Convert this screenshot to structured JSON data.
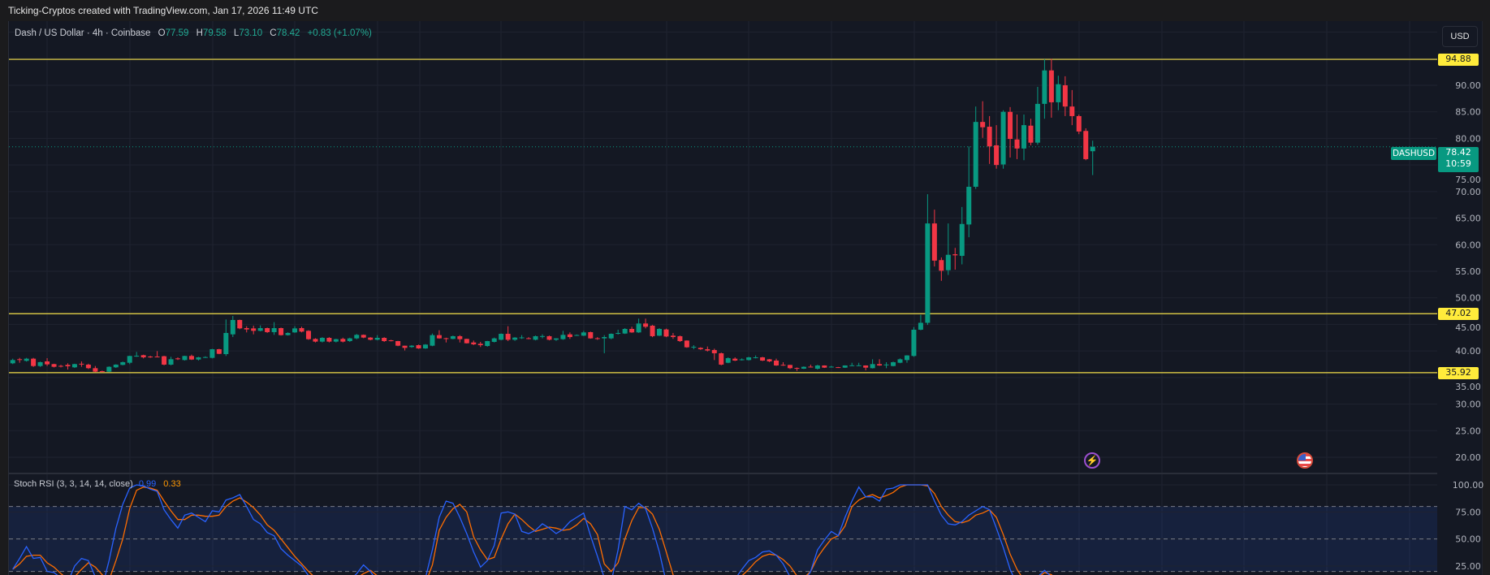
{
  "credit": "Ticking-Cryptos created with TradingView.com, Jan 17, 2026 11:49 UTC",
  "legend": {
    "symbol": "Dash / US Dollar · 4h · Coinbase",
    "o_label": "O",
    "o": "77.59",
    "h_label": "H",
    "h": "79.58",
    "l_label": "L",
    "l": "73.10",
    "c_label": "C",
    "c": "78.42",
    "change": "+0.83 (+1.07%)"
  },
  "currency_button": "USD",
  "price_axis": {
    "ticks": [
      "90.00",
      "85.00",
      "80.00",
      "75.00",
      "70.00",
      "65.00",
      "60.00",
      "55.00",
      "50.00",
      "45.00",
      "40.00",
      "35.00",
      "30.00",
      "25.00",
      "20.00"
    ]
  },
  "horizontal_lines": [
    {
      "price": 94.88,
      "label": "94.88"
    },
    {
      "price": 47.02,
      "label": "47.02"
    },
    {
      "price": 35.92,
      "label": "35.92"
    }
  ],
  "last_price": {
    "symbol": "DASHUSD",
    "price": "78.42",
    "countdown": "10:59"
  },
  "event_icons": [
    "lightning-event-icon",
    "us-flag-event-icon"
  ],
  "stoch_rsi": {
    "label": "Stoch RSI (3, 3, 14, 14, close)",
    "k_value": "0.99",
    "d_value": "0.33",
    "axis_ticks": [
      "100.00",
      "75.00",
      "50.00",
      "25.00"
    ],
    "bands": [
      80,
      50,
      20
    ]
  },
  "colors": {
    "up": "#089981",
    "down": "#f23645",
    "hline": "#f5e04a",
    "stoch_k": "#2962ff",
    "stoch_d": "#ff6d00",
    "background": "#141823"
  },
  "chart_data": {
    "type": "candlestick",
    "symbol": "DASHUSD",
    "interval": "4h",
    "ylim": [
      16.9,
      102.4
    ],
    "grid": true,
    "ohlc": [
      [
        37.68,
        38.55,
        37.53,
        38.29
      ],
      [
        38.45,
        38.7,
        37.78,
        38.35
      ],
      [
        38.14,
        38.7,
        38.0,
        38.55
      ],
      [
        38.55,
        38.7,
        37.0,
        37.17
      ],
      [
        37.17,
        38.0,
        37.0,
        37.89
      ],
      [
        38.04,
        38.65,
        37.17,
        37.48
      ],
      [
        37.53,
        37.6,
        36.9,
        37.02
      ],
      [
        37.2,
        37.4,
        36.9,
        37.15
      ],
      [
        37.38,
        37.68,
        36.51,
        37.12
      ],
      [
        36.92,
        37.6,
        36.8,
        37.53
      ],
      [
        37.6,
        38.04,
        37.02,
        37.5
      ],
      [
        37.43,
        37.6,
        36.6,
        36.76
      ],
      [
        36.76,
        37.17,
        36.0,
        36.1
      ],
      [
        36.2,
        36.3,
        35.95,
        36.1
      ],
      [
        36.1,
        37.1,
        36.0,
        37.02
      ],
      [
        36.92,
        37.5,
        36.8,
        37.43
      ],
      [
        37.38,
        38.0,
        37.3,
        37.89
      ],
      [
        37.78,
        39.1,
        37.53,
        39.06
      ],
      [
        39.0,
        39.82,
        38.9,
        39.1
      ],
      [
        39.21,
        39.3,
        38.6,
        38.8
      ],
      [
        38.95,
        39.1,
        38.7,
        38.85
      ],
      [
        38.95,
        39.97,
        38.8,
        38.85
      ],
      [
        39.01,
        39.1,
        37.3,
        37.43
      ],
      [
        37.43,
        38.9,
        37.3,
        38.45
      ],
      [
        38.6,
        38.8,
        38.3,
        38.5
      ],
      [
        38.29,
        39.1,
        38.2,
        39.06
      ],
      [
        39.06,
        39.31,
        38.3,
        38.39
      ],
      [
        38.39,
        38.9,
        38.2,
        38.8
      ],
      [
        38.8,
        39.0,
        38.7,
        38.85
      ],
      [
        38.7,
        40.4,
        38.6,
        40.33
      ],
      [
        40.33,
        40.4,
        39.4,
        39.46
      ],
      [
        39.41,
        45.93,
        39.06,
        43.39
      ],
      [
        43.13,
        46.6,
        42.62,
        45.83
      ],
      [
        45.83,
        45.9,
        44.1,
        44.25
      ],
      [
        44.3,
        44.66,
        43.49,
        44.05
      ],
      [
        44.25,
        44.76,
        43.13,
        43.79
      ],
      [
        43.79,
        44.81,
        43.7,
        44.3
      ],
      [
        44.3,
        44.4,
        43.4,
        43.54
      ],
      [
        43.54,
        45.42,
        43.03,
        44.3
      ],
      [
        44.3,
        44.4,
        42.9,
        42.98
      ],
      [
        42.98,
        43.5,
        42.9,
        43.39
      ],
      [
        43.49,
        44.66,
        43.4,
        44.25
      ],
      [
        44.3,
        44.56,
        43.5,
        43.64
      ],
      [
        43.79,
        43.9,
        42.1,
        42.22
      ],
      [
        42.27,
        42.4,
        41.6,
        41.76
      ],
      [
        41.76,
        42.6,
        41.6,
        42.47
      ],
      [
        42.47,
        42.6,
        41.6,
        41.76
      ],
      [
        41.76,
        42.3,
        41.6,
        42.22
      ],
      [
        42.27,
        42.5,
        41.6,
        41.76
      ],
      [
        41.86,
        42.5,
        41.7,
        42.37
      ],
      [
        42.37,
        43.2,
        42.2,
        43.03
      ],
      [
        43.03,
        43.1,
        42.4,
        42.52
      ],
      [
        42.52,
        42.6,
        42.0,
        42.11
      ],
      [
        42.11,
        42.98,
        42.0,
        42.47
      ],
      [
        42.47,
        42.6,
        41.7,
        41.86
      ],
      [
        42.0,
        42.1,
        41.8,
        41.9
      ],
      [
        41.86,
        41.9,
        40.9,
        40.99
      ],
      [
        40.99,
        41.0,
        40.1,
        40.58
      ],
      [
        40.74,
        41.1,
        40.6,
        40.99
      ],
      [
        41.09,
        41.2,
        40.4,
        40.48
      ],
      [
        40.48,
        41.3,
        40.4,
        41.2
      ],
      [
        40.99,
        43.28,
        40.9,
        42.98
      ],
      [
        42.98,
        43.9,
        42.3,
        42.37
      ],
      [
        42.4,
        42.5,
        41.6,
        42.35
      ],
      [
        42.27,
        42.9,
        42.2,
        42.78
      ],
      [
        42.78,
        42.98,
        41.6,
        42.22
      ],
      [
        42.27,
        42.3,
        41.4,
        41.45
      ],
      [
        41.6,
        41.96,
        41.1,
        41.25
      ],
      [
        41.35,
        41.71,
        40.74,
        41.09
      ],
      [
        40.94,
        41.9,
        40.8,
        41.86
      ],
      [
        41.71,
        42.52,
        41.6,
        42.37
      ],
      [
        42.11,
        43.3,
        42.0,
        43.23
      ],
      [
        43.23,
        44.66,
        41.86,
        42.11
      ],
      [
        42.11,
        42.6,
        41.9,
        42.52
      ],
      [
        42.5,
        42.98,
        42.27,
        42.55
      ],
      [
        42.4,
        42.6,
        42.2,
        42.35
      ],
      [
        42.11,
        42.9,
        42.0,
        42.78
      ],
      [
        42.75,
        43.13,
        42.37,
        42.8
      ],
      [
        42.78,
        42.9,
        42.0,
        42.11
      ],
      [
        42.11,
        42.4,
        41.9,
        42.37
      ],
      [
        42.22,
        43.79,
        42.1,
        43.03
      ],
      [
        43.13,
        43.49,
        42.27,
        42.62
      ],
      [
        42.95,
        43.1,
        42.85,
        43.0
      ],
      [
        42.88,
        43.79,
        42.8,
        43.49
      ],
      [
        43.54,
        43.64,
        42.3,
        42.37
      ],
      [
        42.4,
        42.6,
        42.1,
        42.35
      ],
      [
        42.37,
        42.98,
        39.57,
        42.62
      ],
      [
        42.37,
        43.3,
        42.2,
        43.23
      ],
      [
        43.23,
        44.0,
        43.1,
        43.39
      ],
      [
        43.28,
        44.3,
        43.2,
        44.15
      ],
      [
        44.15,
        44.56,
        43.4,
        43.49
      ],
      [
        43.49,
        46.09,
        43.4,
        45.17
      ],
      [
        45.17,
        46.09,
        44.25,
        44.56
      ],
      [
        44.76,
        44.9,
        42.6,
        42.78
      ],
      [
        42.88,
        44.3,
        42.8,
        44.15
      ],
      [
        44.05,
        44.2,
        42.6,
        42.72
      ],
      [
        42.88,
        43.39,
        42.27,
        42.62
      ],
      [
        42.78,
        42.9,
        41.7,
        41.86
      ],
      [
        41.96,
        42.0,
        40.6,
        40.69
      ],
      [
        40.7,
        41.09,
        40.33,
        40.8
      ],
      [
        40.58,
        40.7,
        40.2,
        40.33
      ],
      [
        40.33,
        40.84,
        39.9,
        40.08
      ],
      [
        40.18,
        40.43,
        38.29,
        39.57
      ],
      [
        39.57,
        39.7,
        37.3,
        37.43
      ],
      [
        37.78,
        38.8,
        37.7,
        38.65
      ],
      [
        38.55,
        38.8,
        38.1,
        38.19
      ],
      [
        38.37,
        38.6,
        38.2,
        38.42
      ],
      [
        38.29,
        38.9,
        38.2,
        38.8
      ],
      [
        38.75,
        39.16,
        38.6,
        38.8
      ],
      [
        38.8,
        38.9,
        38.1,
        38.19
      ],
      [
        38.44,
        38.5,
        37.9,
        38.04
      ],
      [
        38.19,
        38.55,
        37.2,
        37.27
      ],
      [
        37.4,
        37.88,
        37.2,
        37.35
      ],
      [
        37.37,
        37.4,
        36.6,
        36.76
      ],
      [
        36.8,
        36.9,
        36.25,
        36.75
      ],
      [
        36.66,
        37.1,
        36.6,
        37.02
      ],
      [
        37.05,
        37.42,
        36.9,
        37.0
      ],
      [
        36.66,
        37.4,
        36.5,
        37.27
      ],
      [
        37.27,
        37.3,
        36.8,
        36.86
      ],
      [
        37.0,
        37.2,
        36.9,
        37.05
      ],
      [
        36.95,
        37.0,
        36.8,
        36.9
      ],
      [
        36.86,
        37.3,
        36.8,
        37.27
      ],
      [
        37.25,
        37.78,
        37.2,
        37.3
      ],
      [
        37.25,
        37.78,
        37.2,
        37.3
      ],
      [
        37.27,
        37.3,
        36.35,
        36.86
      ],
      [
        36.76,
        38.44,
        36.7,
        37.53
      ],
      [
        37.53,
        38.44,
        37.2,
        37.27
      ],
      [
        37.4,
        37.88,
        36.76,
        37.45
      ],
      [
        37.17,
        38.0,
        37.1,
        37.88
      ],
      [
        37.78,
        38.6,
        37.7,
        38.44
      ],
      [
        38.29,
        39.2,
        37.78,
        39.16
      ],
      [
        39.06,
        44.5,
        38.9,
        44.0
      ],
      [
        44.0,
        46.8,
        43.9,
        45.3
      ],
      [
        45.3,
        69.5,
        44.9,
        64.0
      ],
      [
        64.0,
        66.6,
        55.9,
        57.0
      ],
      [
        57.1,
        57.6,
        53.2,
        55.1
      ],
      [
        55.2,
        64.0,
        54.3,
        58.1
      ],
      [
        58.2,
        59.4,
        55.3,
        58.0
      ],
      [
        57.9,
        67.1,
        56.3,
        63.9
      ],
      [
        63.8,
        78.5,
        61.4,
        70.9
      ],
      [
        70.9,
        86.0,
        70.5,
        83.1
      ],
      [
        83.1,
        87.0,
        80.1,
        82.1
      ],
      [
        82.2,
        84.2,
        75.2,
        78.5
      ],
      [
        78.7,
        82.5,
        74.3,
        75.0
      ],
      [
        75.1,
        85.3,
        74.3,
        85.0
      ],
      [
        85.0,
        85.9,
        76.4,
        79.9
      ],
      [
        79.8,
        84.5,
        76.1,
        78.1
      ],
      [
        78.1,
        84.5,
        75.9,
        82.5
      ],
      [
        82.4,
        83.7,
        78.7,
        79.2
      ],
      [
        79.2,
        89.7,
        78.8,
        86.5
      ],
      [
        86.5,
        94.9,
        83.7,
        92.8
      ],
      [
        92.8,
        95.0,
        83.9,
        86.8
      ],
      [
        86.8,
        91.8,
        85.3,
        90.2
      ],
      [
        90.0,
        91.7,
        84.2,
        86.0
      ],
      [
        86.0,
        89.1,
        82.5,
        84.2
      ],
      [
        84.2,
        84.5,
        80.8,
        81.3
      ],
      [
        81.4,
        81.9,
        75.9,
        76.1
      ],
      [
        77.59,
        79.58,
        73.1,
        78.42
      ]
    ],
    "stoch_k": [
      22,
      32,
      43,
      32,
      33,
      20,
      19,
      14,
      10,
      25,
      32,
      30,
      15,
      5,
      30,
      60,
      82,
      97,
      100,
      99,
      96,
      94,
      77,
      68,
      60,
      72,
      74,
      70,
      66,
      76,
      75,
      86,
      88,
      91,
      80,
      68,
      64,
      56,
      53,
      41,
      35,
      30,
      25,
      16,
      8,
      5,
      3,
      3,
      5,
      12,
      18,
      26,
      20,
      10,
      4,
      2,
      2,
      3,
      5,
      8,
      14,
      40,
      70,
      85,
      83,
      70,
      55,
      38,
      24,
      30,
      44,
      74,
      75,
      73,
      57,
      55,
      58,
      64,
      60,
      55,
      59,
      66,
      70,
      74,
      53,
      34,
      14,
      10,
      40,
      80,
      77,
      83,
      78,
      60,
      38,
      10,
      3,
      1,
      1,
      1,
      2,
      3,
      5,
      8,
      10,
      13,
      22,
      30,
      33,
      38,
      39,
      35,
      27,
      15,
      8,
      10,
      20,
      40,
      49,
      57,
      53,
      70,
      85,
      98,
      89,
      89,
      85,
      96,
      97,
      100,
      100,
      100,
      100,
      100,
      85,
      72,
      64,
      63,
      66,
      72,
      76,
      80,
      77,
      60,
      42,
      22,
      8,
      3,
      5,
      15,
      21,
      15,
      6,
      3,
      2,
      1,
      1,
      0.99
    ],
    "stoch_d": [
      22,
      27,
      34,
      35,
      35,
      28,
      24,
      18,
      13,
      15,
      22,
      28,
      24,
      17,
      12,
      30,
      50,
      78,
      95,
      98,
      97,
      95,
      85,
      76,
      68,
      68,
      72,
      72,
      71,
      71,
      72,
      80,
      85,
      88,
      84,
      79,
      72,
      63,
      58,
      50,
      42,
      34,
      27,
      20,
      14,
      9,
      6,
      5,
      6,
      9,
      14,
      18,
      21,
      16,
      9,
      5,
      3,
      3,
      4,
      6,
      9,
      26,
      58,
      70,
      78,
      82,
      75,
      52,
      40,
      31,
      33,
      50,
      64,
      73,
      68,
      62,
      57,
      59,
      61,
      60,
      58,
      59,
      63,
      69,
      64,
      54,
      27,
      20,
      28,
      50,
      67,
      79,
      79,
      73,
      59,
      38,
      17,
      6,
      3,
      2,
      2,
      3,
      4,
      5,
      7,
      10,
      16,
      22,
      29,
      34,
      36,
      35,
      31,
      25,
      16,
      14,
      20,
      33,
      42,
      50,
      53,
      62,
      80,
      86,
      89,
      91,
      88,
      90,
      93,
      98,
      100,
      100,
      100,
      99,
      92,
      80,
      72,
      66,
      65,
      67,
      72,
      74,
      77,
      70,
      54,
      36,
      22,
      12,
      10,
      14,
      19,
      17,
      11,
      6,
      3,
      1,
      1,
      0.33
    ]
  }
}
